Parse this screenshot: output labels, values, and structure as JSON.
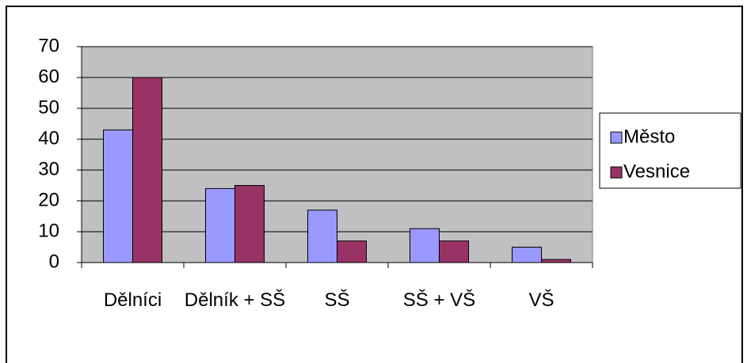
{
  "chart_data": {
    "type": "bar",
    "categories": [
      "Dělníci",
      "Dělník + SŠ",
      "SŠ",
      "SŠ + VŠ",
      "VŠ"
    ],
    "series": [
      {
        "name": "Město",
        "color": "#9999ff",
        "values": [
          43,
          24,
          17,
          11,
          5
        ]
      },
      {
        "name": "Vesnice",
        "color": "#993366",
        "values": [
          60,
          25,
          7,
          7,
          1
        ]
      }
    ],
    "ylim": [
      0,
      70
    ],
    "yticks": [
      0,
      10,
      20,
      30,
      40,
      50,
      60,
      70
    ],
    "grid": true,
    "legend": "right"
  }
}
